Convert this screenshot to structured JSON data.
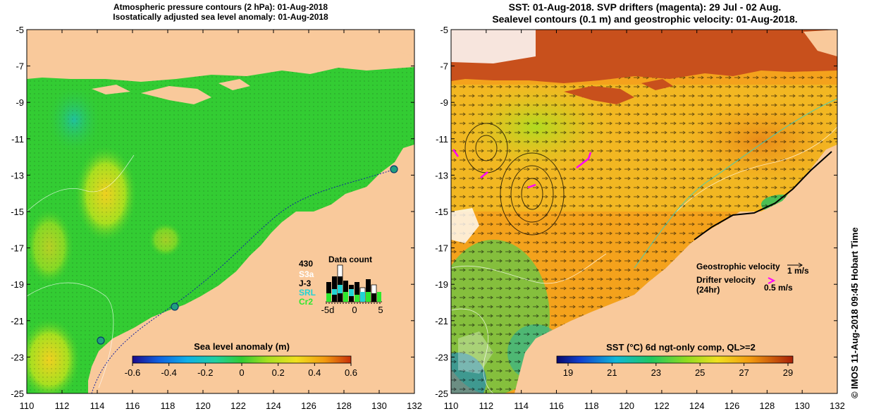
{
  "left_panel": {
    "title_line1": "Atmospheric pressure contours (2 hPa): 01-Aug-2018",
    "title_line2": "Isostatically adjusted sea level anomaly: 01-Aug-2018",
    "colorbar": {
      "title": "Sea level anomaly (m)",
      "ticks": [
        "-0.6",
        "-0.4",
        "-0.2",
        "0",
        "0.2",
        "0.4",
        "0.6"
      ]
    },
    "data_count": {
      "title": "Data count",
      "max_label": "430",
      "series_labels": [
        "S3a",
        "J-3",
        "SRL",
        "Cr2"
      ],
      "series_colors": [
        "#ffffff",
        "#000000",
        "#21d4d4",
        "#2ee82e"
      ],
      "x_ticks": [
        "-5d",
        "0",
        "5"
      ]
    }
  },
  "right_panel": {
    "title_line1": "SST: 01-Aug-2018. SVP drifters (magenta): 29 Jul - 02 Aug.",
    "title_line2": "Sealevel contours (0.1 m) and geostrophic velocity: 01-Aug-2018.",
    "colorbar": {
      "title": "SST (°C) 6d ngt-only comp, QL>=2",
      "ticks": [
        "19",
        "21",
        "23",
        "25",
        "27",
        "29"
      ]
    },
    "legend": {
      "geostrophic_label": "Geostrophic velocity",
      "geostrophic_scale": "1 m/s",
      "drifter_label": "Drifter velocity",
      "drifter_sub": "(24hr)",
      "drifter_scale": "0.5 m/s",
      "drifter_color": "#ff00ff"
    }
  },
  "axes": {
    "y_ticks": [
      "-5",
      "-7",
      "-9",
      "-11",
      "-13",
      "-15",
      "-17",
      "-19",
      "-21",
      "-23",
      "-25"
    ],
    "x_ticks": [
      "110",
      "112",
      "114",
      "116",
      "118",
      "120",
      "122",
      "124",
      "126",
      "128",
      "130",
      "132"
    ]
  },
  "side_label": "© IMOS 11-Aug-2018 09:45 Hobart Time",
  "colors": {
    "land": "#f9c99b",
    "ocean_green": "#33cc33",
    "sst_orange": "#f4a21c"
  }
}
